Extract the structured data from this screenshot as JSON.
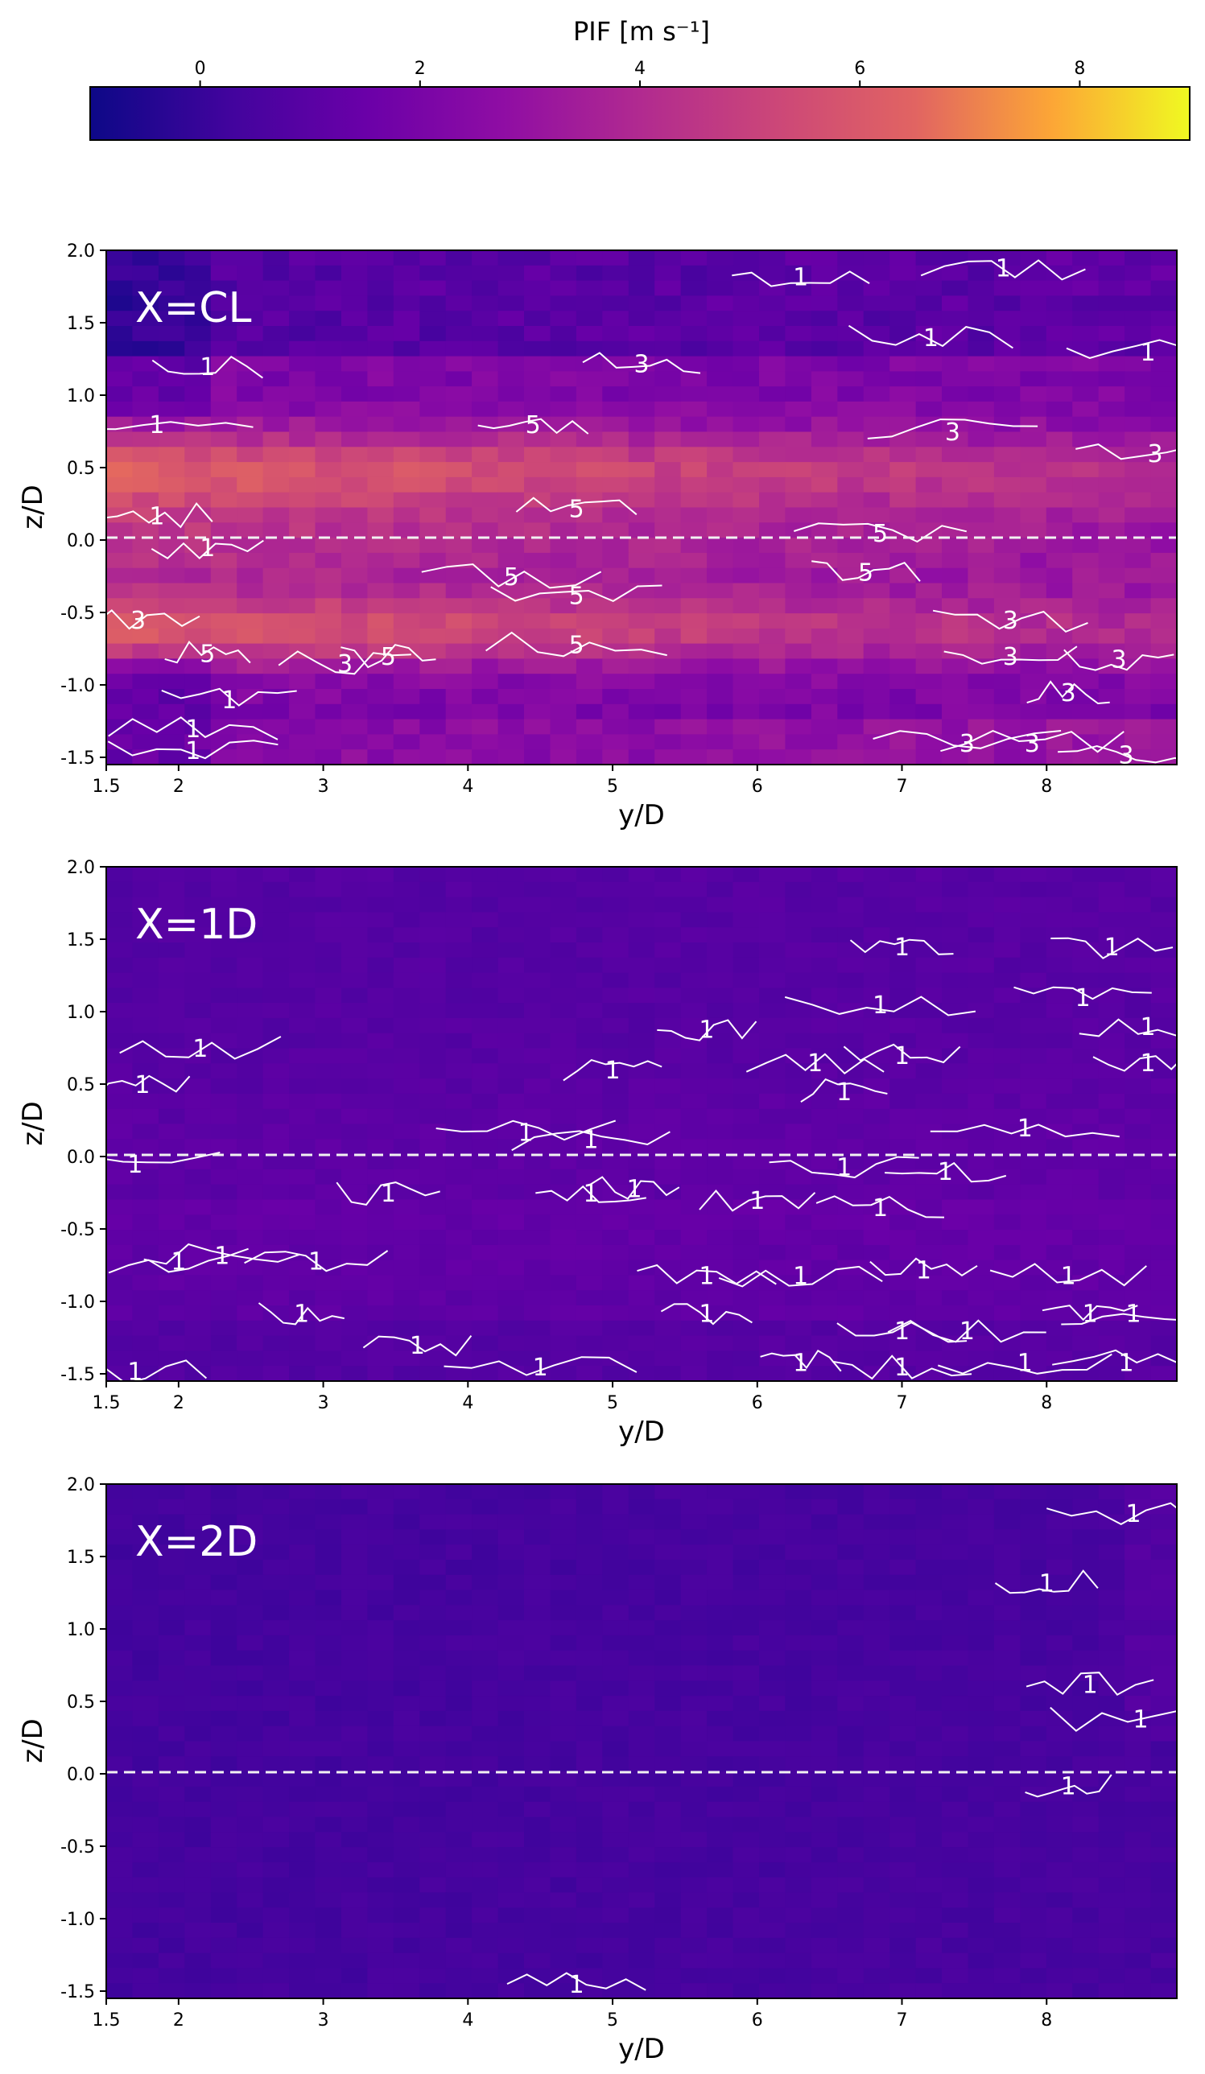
{
  "colorbar": {
    "label": "PIF [m s⁻¹]",
    "ticks": [
      0,
      2,
      4,
      6,
      8
    ],
    "range": [
      -1,
      9
    ],
    "colormap": "plasma"
  },
  "chart_data": [
    {
      "type": "heatmap",
      "panel_label": "X=CL",
      "xlabel": "y/D",
      "ylabel": "z/D",
      "xlim": [
        1.5,
        8.9
      ],
      "ylim": [
        -1.55,
        2.0
      ],
      "xticks": [
        "1.5",
        "2",
        "3",
        "4",
        "5",
        "6",
        "7",
        "8"
      ],
      "yticks": [
        "-1.5",
        "-1.0",
        "-0.5",
        "0.0",
        "0.5",
        "1.0",
        "1.5",
        "2.0"
      ],
      "reference_line": {
        "z": 0.0,
        "style": "dashed",
        "color": "#ffffff"
      },
      "contour_levels": [
        1,
        3,
        5
      ],
      "contour_labels": [
        {
          "text": "1",
          "y": 6.3,
          "z": 1.82
        },
        {
          "text": "1",
          "y": 7.7,
          "z": 1.88
        },
        {
          "text": "1",
          "y": 7.2,
          "z": 1.4
        },
        {
          "text": "1",
          "y": 8.7,
          "z": 1.3
        },
        {
          "text": "1",
          "y": 2.2,
          "z": 1.2
        },
        {
          "text": "3",
          "y": 5.2,
          "z": 1.22
        },
        {
          "text": "1",
          "y": 1.85,
          "z": 0.8
        },
        {
          "text": "5",
          "y": 4.45,
          "z": 0.8
        },
        {
          "text": "3",
          "y": 7.35,
          "z": 0.75
        },
        {
          "text": "3",
          "y": 8.75,
          "z": 0.6
        },
        {
          "text": "1",
          "y": 1.85,
          "z": 0.17
        },
        {
          "text": "5",
          "y": 4.75,
          "z": 0.22
        },
        {
          "text": "1",
          "y": 2.2,
          "z": -0.05
        },
        {
          "text": "5",
          "y": 6.85,
          "z": 0.05
        },
        {
          "text": "5",
          "y": 4.3,
          "z": -0.25
        },
        {
          "text": "5",
          "y": 4.75,
          "z": -0.38
        },
        {
          "text": "5",
          "y": 6.75,
          "z": -0.22
        },
        {
          "text": "3",
          "y": 1.72,
          "z": -0.55
        },
        {
          "text": "5",
          "y": 2.2,
          "z": -0.78
        },
        {
          "text": "3",
          "y": 3.15,
          "z": -0.85
        },
        {
          "text": "5",
          "y": 3.45,
          "z": -0.8
        },
        {
          "text": "5",
          "y": 4.75,
          "z": -0.72
        },
        {
          "text": "3",
          "y": 7.75,
          "z": -0.55
        },
        {
          "text": "3",
          "y": 7.75,
          "z": -0.8
        },
        {
          "text": "3",
          "y": 8.5,
          "z": -0.82
        },
        {
          "text": "3",
          "y": 8.15,
          "z": -1.05
        },
        {
          "text": "1",
          "y": 2.35,
          "z": -1.1
        },
        {
          "text": "1",
          "y": 2.1,
          "z": -1.3
        },
        {
          "text": "1",
          "y": 2.1,
          "z": -1.45
        },
        {
          "text": "3",
          "y": 7.45,
          "z": -1.4
        },
        {
          "text": "3",
          "y": 7.9,
          "z": -1.4
        },
        {
          "text": "3",
          "y": 8.55,
          "z": -1.48
        }
      ]
    },
    {
      "type": "heatmap",
      "panel_label": "X=1D",
      "xlabel": "y/D",
      "ylabel": "z/D",
      "xlim": [
        1.5,
        8.9
      ],
      "ylim": [
        -1.55,
        2.0
      ],
      "xticks": [
        "1.5",
        "2",
        "3",
        "4",
        "5",
        "6",
        "7",
        "8"
      ],
      "yticks": [
        "-1.5",
        "-1.0",
        "-0.5",
        "0.0",
        "0.5",
        "1.0",
        "1.5",
        "2.0"
      ],
      "reference_line": {
        "z": 0.0,
        "style": "dashed",
        "color": "#ffffff"
      },
      "contour_levels": [
        1
      ],
      "contour_labels": [
        {
          "text": "1",
          "y": 7.0,
          "z": 1.45
        },
        {
          "text": "1",
          "y": 8.45,
          "z": 1.45
        },
        {
          "text": "1",
          "y": 6.85,
          "z": 1.05
        },
        {
          "text": "1",
          "y": 8.25,
          "z": 1.1
        },
        {
          "text": "1",
          "y": 8.7,
          "z": 0.9
        },
        {
          "text": "1",
          "y": 2.15,
          "z": 0.75
        },
        {
          "text": "1",
          "y": 5.65,
          "z": 0.88
        },
        {
          "text": "1",
          "y": 6.4,
          "z": 0.65
        },
        {
          "text": "1",
          "y": 7.0,
          "z": 0.7
        },
        {
          "text": "1",
          "y": 8.7,
          "z": 0.65
        },
        {
          "text": "1",
          "y": 1.75,
          "z": 0.5
        },
        {
          "text": "1",
          "y": 5.0,
          "z": 0.6
        },
        {
          "text": "1",
          "y": 6.6,
          "z": 0.45
        },
        {
          "text": "1",
          "y": 4.4,
          "z": 0.17
        },
        {
          "text": "1",
          "y": 4.85,
          "z": 0.12
        },
        {
          "text": "1",
          "y": 7.85,
          "z": 0.2
        },
        {
          "text": "1",
          "y": 1.7,
          "z": -0.05
        },
        {
          "text": "1",
          "y": 6.6,
          "z": -0.07
        },
        {
          "text": "1",
          "y": 7.3,
          "z": -0.1
        },
        {
          "text": "1",
          "y": 3.45,
          "z": -0.25
        },
        {
          "text": "1",
          "y": 4.85,
          "z": -0.25
        },
        {
          "text": "1",
          "y": 5.15,
          "z": -0.22
        },
        {
          "text": "1",
          "y": 6.0,
          "z": -0.3
        },
        {
          "text": "1",
          "y": 6.85,
          "z": -0.35
        },
        {
          "text": "1",
          "y": 2.0,
          "z": -0.72
        },
        {
          "text": "1",
          "y": 2.3,
          "z": -0.68
        },
        {
          "text": "1",
          "y": 2.95,
          "z": -0.72
        },
        {
          "text": "1",
          "y": 5.65,
          "z": -0.82
        },
        {
          "text": "1",
          "y": 6.3,
          "z": -0.82
        },
        {
          "text": "1",
          "y": 7.15,
          "z": -0.78
        },
        {
          "text": "1",
          "y": 8.15,
          "z": -0.82
        },
        {
          "text": "1",
          "y": 2.85,
          "z": -1.08
        },
        {
          "text": "1",
          "y": 5.65,
          "z": -1.08
        },
        {
          "text": "1",
          "y": 8.3,
          "z": -1.08
        },
        {
          "text": "1",
          "y": 8.6,
          "z": -1.08
        },
        {
          "text": "1",
          "y": 3.65,
          "z": -1.3
        },
        {
          "text": "1",
          "y": 7.0,
          "z": -1.2
        },
        {
          "text": "1",
          "y": 7.45,
          "z": -1.2
        },
        {
          "text": "1",
          "y": 1.7,
          "z": -1.48
        },
        {
          "text": "1",
          "y": 4.5,
          "z": -1.45
        },
        {
          "text": "1",
          "y": 6.3,
          "z": -1.42
        },
        {
          "text": "1",
          "y": 7.0,
          "z": -1.45
        },
        {
          "text": "1",
          "y": 7.85,
          "z": -1.42
        },
        {
          "text": "1",
          "y": 8.55,
          "z": -1.42
        }
      ]
    },
    {
      "type": "heatmap",
      "panel_label": "X=2D",
      "xlabel": "y/D",
      "ylabel": "z/D",
      "xlim": [
        1.5,
        8.9
      ],
      "ylim": [
        -1.55,
        2.0
      ],
      "xticks": [
        "1.5",
        "2",
        "3",
        "4",
        "5",
        "6",
        "7",
        "8"
      ],
      "yticks": [
        "-1.5",
        "-1.0",
        "-0.5",
        "0.0",
        "0.5",
        "1.0",
        "1.5",
        "2.0"
      ],
      "reference_line": {
        "z": 0.0,
        "style": "dashed",
        "color": "#ffffff"
      },
      "contour_levels": [
        1
      ],
      "contour_labels": [
        {
          "text": "1",
          "y": 8.6,
          "z": 1.8
        },
        {
          "text": "1",
          "y": 8.0,
          "z": 1.32
        },
        {
          "text": "1",
          "y": 8.3,
          "z": 0.62
        },
        {
          "text": "1",
          "y": 8.65,
          "z": 0.38
        },
        {
          "text": "1",
          "y": 8.15,
          "z": -0.08
        },
        {
          "text": "1",
          "y": 4.75,
          "z": -1.45
        }
      ]
    }
  ]
}
